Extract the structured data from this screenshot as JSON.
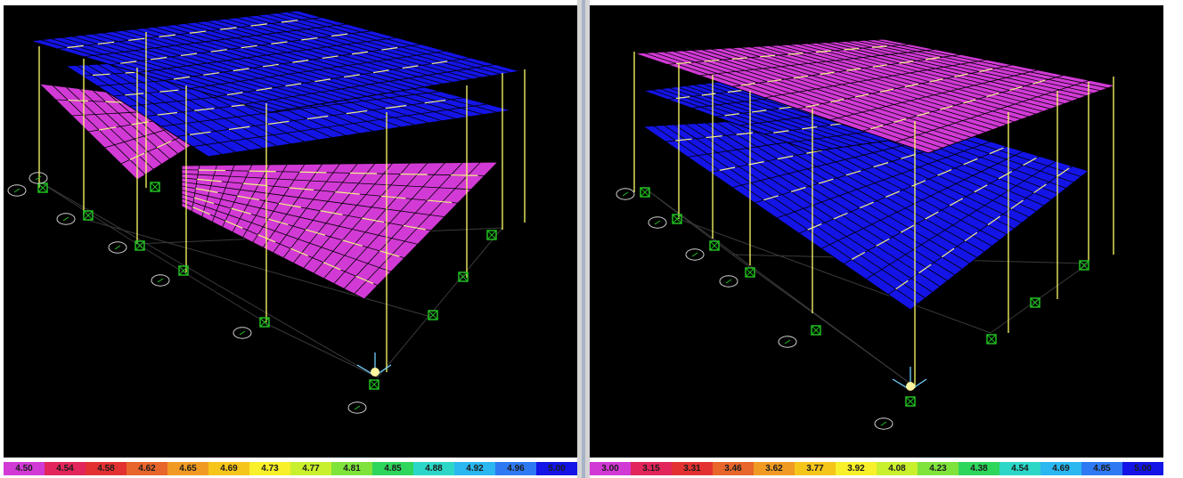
{
  "colors": {
    "background": "#000000",
    "frame_line": "#ffff66",
    "grid_line": "#3a3a3a",
    "slab_blue": "#1414e6",
    "slab_magenta": "#d23ad6",
    "support": "#20c020",
    "joint_marker": "#d0d0d0"
  },
  "left_view": {
    "name": "3D model view (left)",
    "legend": {
      "labels": [
        "4.50",
        "4.54",
        "4.58",
        "4.62",
        "4.65",
        "4.69",
        "4.73",
        "4.77",
        "4.81",
        "4.85",
        "4.88",
        "4.92",
        "4.96",
        "5.00"
      ],
      "colors": [
        "#d23ad6",
        "#e2255a",
        "#e33131",
        "#e8652b",
        "#f09a23",
        "#f6c51a",
        "#f7f02a",
        "#c9f02d",
        "#7fe33b",
        "#2fd65c",
        "#2cd7c7",
        "#2bb7f0",
        "#2f7af2",
        "#1414e6"
      ]
    }
  },
  "right_view": {
    "name": "3D model view (right)",
    "legend": {
      "labels": [
        "3.00",
        "3.15",
        "3.31",
        "3.46",
        "3.62",
        "3.77",
        "3.92",
        "4.08",
        "4.23",
        "4.38",
        "4.54",
        "4.69",
        "4.85",
        "5.00"
      ],
      "colors": [
        "#d23ad6",
        "#e2255a",
        "#e33131",
        "#e8652b",
        "#f09a23",
        "#f6c51a",
        "#f7f02a",
        "#c9f02d",
        "#7fe33b",
        "#2fd65c",
        "#2cd7c7",
        "#2bb7f0",
        "#2f7af2",
        "#1414e6"
      ]
    }
  }
}
